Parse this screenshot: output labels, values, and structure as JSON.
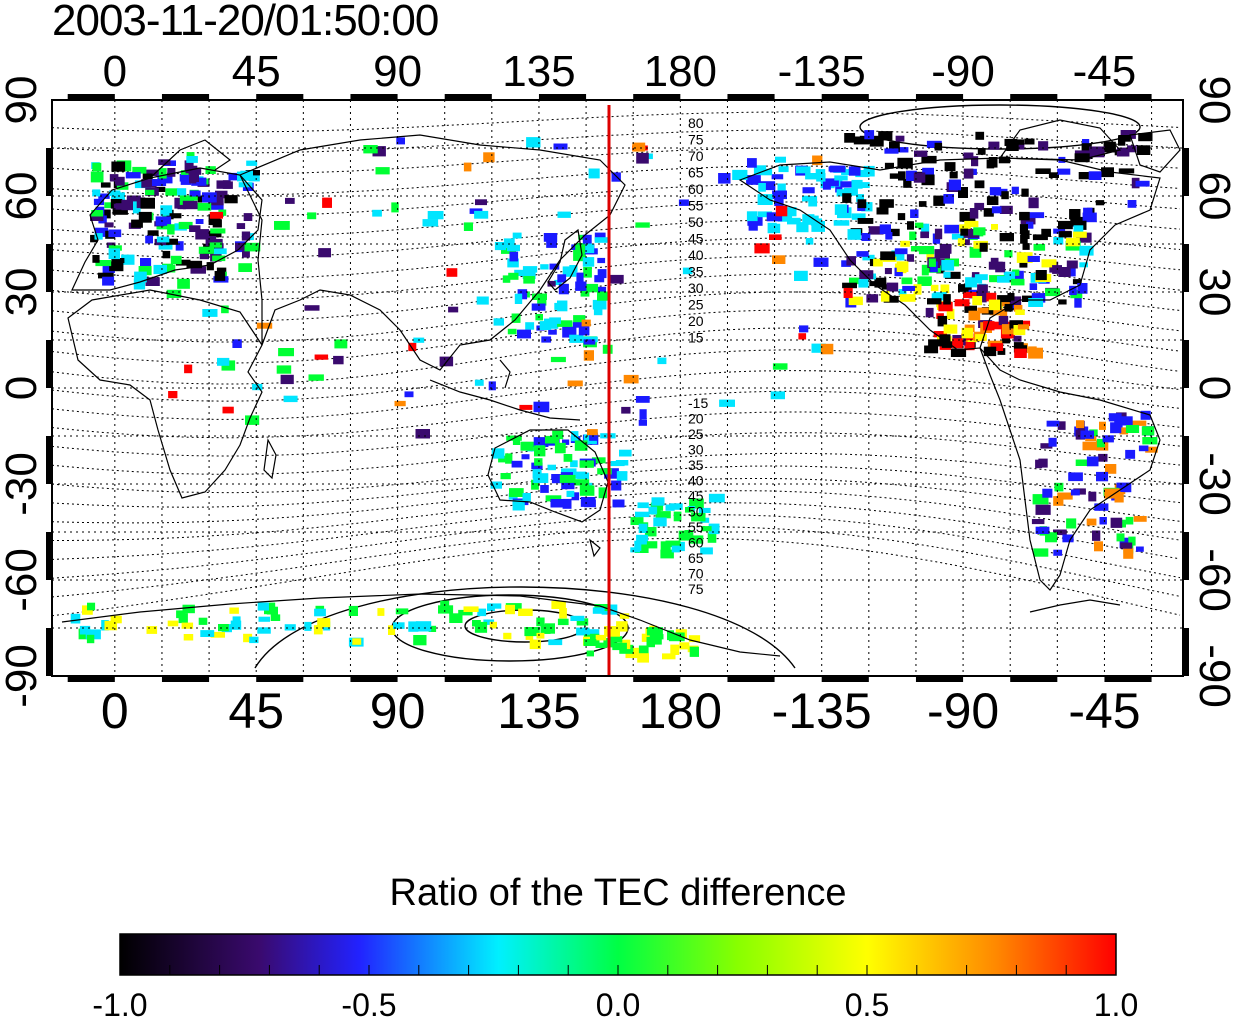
{
  "timestamp": "2003-11-20/01:50:00",
  "axes": {
    "lon_ticks_top": [
      "0",
      "45",
      "90",
      "135",
      "180",
      "-135",
      "-90",
      "-45"
    ],
    "lon_ticks_bottom": [
      "0",
      "45",
      "90",
      "135",
      "180",
      "-135",
      "-90",
      "-45"
    ],
    "lat_ticks_left": [
      "90",
      "60",
      "30",
      "0",
      "-30",
      "-60",
      "-90"
    ],
    "lat_ticks_right": [
      "90",
      "60",
      "30",
      "0",
      "-30",
      "-60",
      "-90"
    ]
  },
  "contour_labels_north": [
    "80",
    "75",
    "70",
    "65",
    "60",
    "55",
    "50",
    "45",
    "40",
    "35",
    "30",
    "25",
    "20",
    "15"
  ],
  "contour_labels_south": [
    "-15",
    "20",
    "25",
    "30",
    "35",
    "40",
    "45",
    "50",
    "55",
    "60",
    "65",
    "70",
    "75"
  ],
  "colorbar": {
    "title": "Ratio of the TEC difference",
    "ticks": [
      "-1.0",
      "-0.5",
      "0.0",
      "0.5",
      "1.0"
    ],
    "range": [
      -1.0,
      1.0
    ],
    "colormap": [
      "#000000",
      "#3a0a6e",
      "#1a1aff",
      "#00e5ff",
      "#00ff33",
      "#ffff00",
      "#ff8800",
      "#ff0000"
    ]
  },
  "chart_data": {
    "type": "map",
    "projection": "cylindrical",
    "x_range_deg": [
      -20,
      340
    ],
    "y_range_deg": [
      -90,
      90
    ],
    "meridian_marker_lon": 152,
    "meridian_marker_color": "#dd0000"
  }
}
